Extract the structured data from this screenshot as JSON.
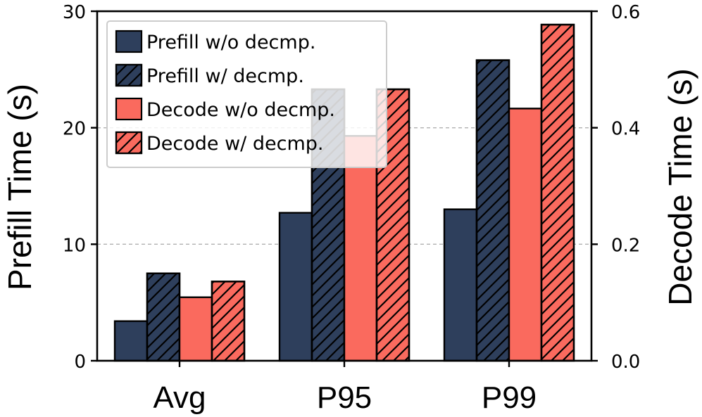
{
  "chart_data": {
    "type": "bar",
    "categories": [
      "Avg",
      "P95",
      "P99"
    ],
    "series": [
      {
        "name": "Prefill w/o decmp.",
        "axis": "left",
        "hatch": false,
        "color": "#2e3f5c",
        "values": [
          3.4,
          12.7,
          13.0
        ]
      },
      {
        "name": "Prefill w/ decmp.",
        "axis": "left",
        "hatch": true,
        "color": "#2e3f5c",
        "values": [
          7.5,
          23.3,
          25.8
        ]
      },
      {
        "name": "Decode w/o decmp.",
        "axis": "right",
        "hatch": false,
        "color": "#fa6a5e",
        "values": [
          0.109,
          0.386,
          0.433
        ]
      },
      {
        "name": "Decode w/ decmp.",
        "axis": "right",
        "hatch": true,
        "color": "#fa6a5e",
        "values": [
          0.136,
          0.466,
          0.577
        ]
      }
    ],
    "ylabel": "Prefill Time (s)",
    "y2label": "Decode Time (s)",
    "ylim": [
      0,
      30
    ],
    "y2lim": [
      0,
      0.6
    ],
    "yticks": [
      "0",
      "10",
      "20",
      "30"
    ],
    "y2ticks": [
      "0.0",
      "0.2",
      "0.4",
      "0.6"
    ],
    "grid": "horizontal dashed",
    "legend_position": "top-left"
  }
}
